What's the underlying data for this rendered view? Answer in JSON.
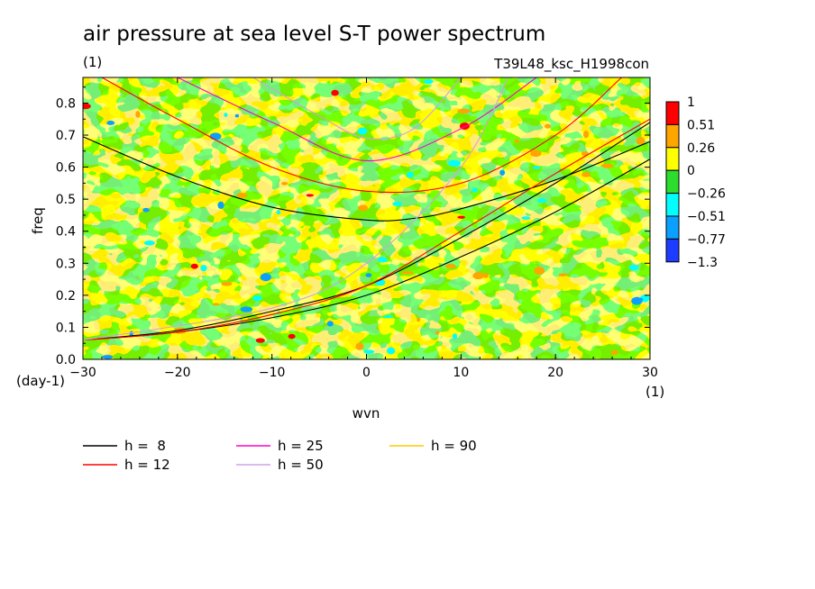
{
  "chart_data": {
    "type": "heatmap",
    "title": "air pressure at sea level S-T power spectrum",
    "subtitle_left": "(1)",
    "subtitle_right": "T39L48_ksc_H1998con",
    "xlabel": "wvn",
    "ylabel": "freq",
    "x_unit": "(1)",
    "y_unit": "(day-1)",
    "xlim": [
      -30,
      30
    ],
    "ylim": [
      0,
      0.88
    ],
    "x_ticks": [
      -30,
      -20,
      -10,
      0,
      10,
      20,
      30
    ],
    "x_tick_labels": [
      "-30",
      "-20",
      "-10",
      "0",
      "10",
      "20",
      "30"
    ],
    "y_ticks": [
      0.0,
      0.1,
      0.2,
      0.3,
      0.4,
      0.5,
      0.6,
      0.7,
      0.8
    ],
    "y_tick_labels": [
      "0.0",
      "0.1",
      "0.2",
      "0.3",
      "0.4",
      "0.5",
      "0.6",
      "0.7",
      "0.8"
    ],
    "colorbar": {
      "labels": [
        "1",
        "0.51",
        "0.26",
        "0",
        "-0.26",
        "-0.51",
        "-0.77",
        "-1.3"
      ],
      "colors": [
        "#ff0000",
        "#ffa500",
        "#ffff00",
        "#2ddc2d",
        "#00ffff",
        "#0aa0ff",
        "#1e3cff"
      ]
    },
    "field_colors": {
      "dominant_positive": "#ffff00",
      "dominant_negative": "#2ddc2d",
      "accent_orange": "#ffa500",
      "accent_cyan": "#00ffff",
      "accent_blue": "#0aa0ff",
      "accent_red": "#ff0000"
    },
    "legend": [
      {
        "label": "h =  8",
        "color": "#000000"
      },
      {
        "label": "h = 12",
        "color": "#ff0000"
      },
      {
        "label": "h = 25",
        "color": "#ff00c8"
      },
      {
        "label": "h = 50",
        "color": "#d2a0e6"
      },
      {
        "label": "h = 90",
        "color": "#ffc800"
      }
    ],
    "dispersion_curves": [
      {
        "h": 8,
        "color": "#000000",
        "kind": "inertia-gravity",
        "points": [
          [
            -30,
            0.695
          ],
          [
            -20,
            0.57
          ],
          [
            -10,
            0.475
          ],
          [
            0,
            0.435
          ],
          [
            5,
            0.44
          ],
          [
            10,
            0.47
          ],
          [
            20,
            0.56
          ],
          [
            30,
            0.68
          ]
        ]
      },
      {
        "h": 8,
        "color": "#000000",
        "kind": "kelvin",
        "points": [
          [
            -30,
            0.06
          ],
          [
            -20,
            0.085
          ],
          [
            -10,
            0.13
          ],
          [
            0,
            0.2
          ],
          [
            10,
            0.32
          ],
          [
            20,
            0.46
          ],
          [
            30,
            0.625
          ]
        ]
      },
      {
        "h": 8,
        "color": "#000000",
        "kind": "mrg",
        "points": [
          [
            -30,
            0.06
          ],
          [
            -20,
            0.09
          ],
          [
            -10,
            0.15
          ],
          [
            0,
            0.23
          ],
          [
            10,
            0.38
          ],
          [
            20,
            0.55
          ],
          [
            30,
            0.74
          ]
        ]
      },
      {
        "h": 12,
        "color": "#ff0000",
        "kind": "inertia-gravity",
        "points": [
          [
            -28,
            0.88
          ],
          [
            -20,
            0.75
          ],
          [
            -10,
            0.6
          ],
          [
            0,
            0.525
          ],
          [
            10,
            0.55
          ],
          [
            20,
            0.7
          ],
          [
            27,
            0.88
          ]
        ]
      },
      {
        "h": 12,
        "color": "#ff0000",
        "kind": "kelvin",
        "points": [
          [
            -30,
            0.06
          ],
          [
            -20,
            0.085
          ],
          [
            -10,
            0.14
          ],
          [
            0,
            0.23
          ],
          [
            10,
            0.4
          ],
          [
            20,
            0.58
          ],
          [
            30,
            0.75
          ]
        ]
      },
      {
        "h": 25,
        "color": "#ff00c8",
        "kind": "inertia-gravity",
        "points": [
          [
            -20,
            0.88
          ],
          [
            -10,
            0.74
          ],
          [
            0,
            0.62
          ],
          [
            10,
            0.72
          ],
          [
            18,
            0.88
          ]
        ]
      },
      {
        "h": 50,
        "color": "#d2a0e6",
        "kind": "inertia-gravity",
        "points": [
          [
            -12,
            0.88
          ],
          [
            -5,
            0.76
          ],
          [
            0,
            0.69
          ],
          [
            5,
            0.72
          ],
          [
            10,
            0.88
          ]
        ]
      },
      {
        "h": 50,
        "color": "#d2a0e6",
        "kind": "kelvin",
        "points": [
          [
            -30,
            0.06
          ],
          [
            -10,
            0.16
          ],
          [
            0,
            0.3
          ],
          [
            10,
            0.6
          ],
          [
            15,
            0.88
          ]
        ]
      }
    ]
  }
}
